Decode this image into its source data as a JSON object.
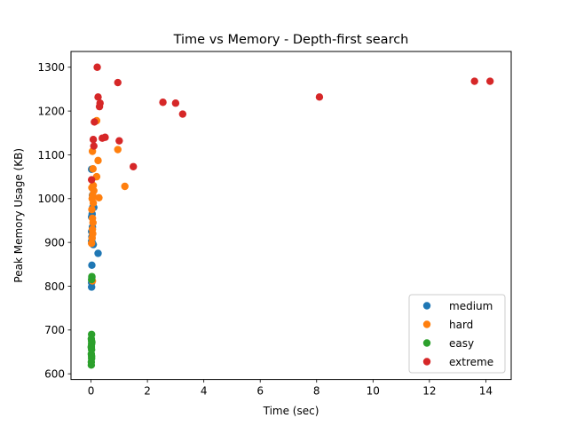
{
  "chart_data": {
    "type": "scatter",
    "title": "Time vs Memory - Depth-first search",
    "xlabel": "Time (sec)",
    "ylabel": "Peak Memory Usage (KB)",
    "xlim": [
      -0.71,
      14.9
    ],
    "ylim": [
      587,
      1336
    ],
    "xticks": [
      0,
      2,
      4,
      6,
      8,
      10,
      12,
      14
    ],
    "yticks": [
      600,
      700,
      800,
      900,
      1000,
      1100,
      1200,
      1300
    ],
    "grid": false,
    "legend_position": "lower-right",
    "series": [
      {
        "name": "medium",
        "color": "#1f77b4",
        "points": [
          [
            0.02,
            798
          ],
          [
            0.02,
            808
          ],
          [
            0.03,
            848
          ],
          [
            0.02,
            903
          ],
          [
            0.03,
            913
          ],
          [
            0.02,
            925
          ],
          [
            0.05,
            935
          ],
          [
            0.02,
            958
          ],
          [
            0.04,
            965
          ],
          [
            0.06,
            980
          ],
          [
            0.1,
            980
          ],
          [
            0.05,
            1008
          ],
          [
            0.02,
            1067
          ],
          [
            0.25,
            875
          ],
          [
            0.03,
            820
          ],
          [
            0.04,
            900
          ],
          [
            0.08,
            895
          ]
        ]
      },
      {
        "name": "hard",
        "color": "#ff7f0e",
        "points": [
          [
            0.02,
            898
          ],
          [
            0.04,
            910
          ],
          [
            0.06,
            920
          ],
          [
            0.05,
            930
          ],
          [
            0.07,
            945
          ],
          [
            0.05,
            955
          ],
          [
            0.03,
            975
          ],
          [
            0.08,
            990
          ],
          [
            0.04,
            1000
          ],
          [
            0.06,
            1008
          ],
          [
            0.1,
            1018
          ],
          [
            0.03,
            1025
          ],
          [
            0.08,
            1030
          ],
          [
            0.07,
            1068
          ],
          [
            0.05,
            1108
          ],
          [
            0.2,
            1050
          ],
          [
            0.25,
            1087
          ],
          [
            0.28,
            1002
          ],
          [
            0.2,
            1178
          ],
          [
            0.95,
            1112
          ],
          [
            1.2,
            1028
          ],
          [
            0.05,
            812
          ]
        ]
      },
      {
        "name": "easy",
        "color": "#2ca02c",
        "points": [
          [
            0.01,
            620
          ],
          [
            0.01,
            627
          ],
          [
            0.02,
            635
          ],
          [
            0.01,
            645
          ],
          [
            0.02,
            655
          ],
          [
            0.01,
            662
          ],
          [
            0.02,
            668
          ],
          [
            0.03,
            672
          ],
          [
            0.02,
            675
          ],
          [
            0.01,
            680
          ],
          [
            0.02,
            690
          ],
          [
            0.02,
            815
          ],
          [
            0.03,
            822
          ],
          [
            0.01,
            660
          ],
          [
            0.02,
            640
          ]
        ]
      },
      {
        "name": "extreme",
        "color": "#d62728",
        "points": [
          [
            0.02,
            1043
          ],
          [
            0.1,
            1120
          ],
          [
            0.08,
            1135
          ],
          [
            0.12,
            1175
          ],
          [
            0.22,
            1300
          ],
          [
            0.25,
            1232
          ],
          [
            0.3,
            1210
          ],
          [
            0.32,
            1218
          ],
          [
            0.4,
            1138
          ],
          [
            0.5,
            1140
          ],
          [
            0.95,
            1265
          ],
          [
            1.0,
            1132
          ],
          [
            1.5,
            1073
          ],
          [
            2.55,
            1220
          ],
          [
            3.0,
            1218
          ],
          [
            3.25,
            1193
          ],
          [
            8.1,
            1232
          ],
          [
            13.6,
            1268
          ],
          [
            14.15,
            1268
          ]
        ]
      }
    ]
  }
}
